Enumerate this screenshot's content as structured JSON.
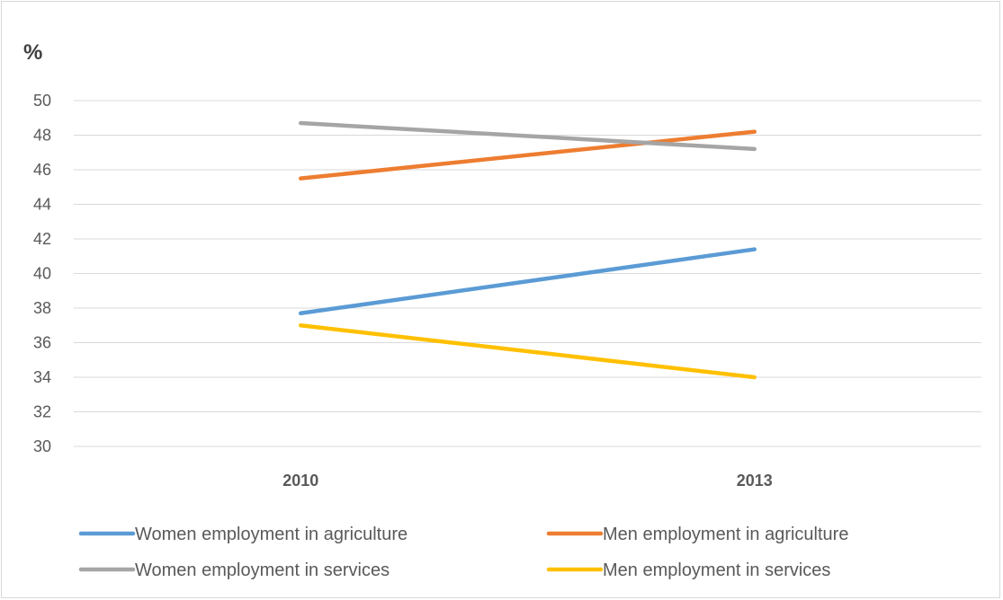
{
  "chart_data": {
    "type": "line",
    "unit_label": "%",
    "categories": [
      "2010",
      "2013"
    ],
    "ylim": [
      30,
      50
    ],
    "yticks": [
      30,
      32,
      34,
      36,
      38,
      40,
      42,
      44,
      46,
      48,
      50
    ],
    "grid": true,
    "legend_position": "bottom",
    "series": [
      {
        "name": "Women employment in agriculture",
        "values": [
          37.7,
          41.4
        ],
        "color": "#5b9bd5"
      },
      {
        "name": "Men employment in agriculture",
        "values": [
          45.5,
          48.2
        ],
        "color": "#ed7d31"
      },
      {
        "name": "Women employment in services",
        "values": [
          48.7,
          47.2
        ],
        "color": "#a5a5a5"
      },
      {
        "name": "Men employment in services",
        "values": [
          37.0,
          34.0
        ],
        "color": "#ffc000"
      }
    ]
  }
}
